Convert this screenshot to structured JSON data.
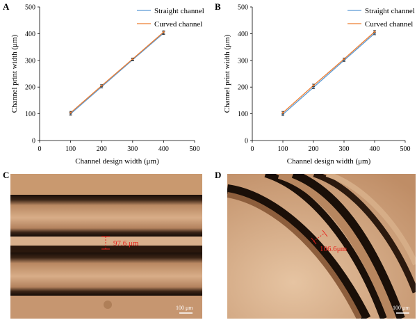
{
  "panels": [
    "A",
    "B",
    "C",
    "D"
  ],
  "chart_data": [
    {
      "type": "line",
      "panel": "A",
      "xlabel": "Channel design width (μm)",
      "ylabel": "Channel print width (μm)",
      "xlim": [
        0,
        500
      ],
      "ylim": [
        0,
        500
      ],
      "xticks": [
        "0",
        "100",
        "200",
        "300",
        "400",
        "500"
      ],
      "yticks": [
        "0",
        "100",
        "200",
        "300",
        "400",
        "500"
      ],
      "x": [
        100,
        200,
        300,
        400
      ],
      "legend_position": "top-right",
      "grid": false,
      "series": [
        {
          "name": "Straight channel",
          "color": "#5b9bd5",
          "values": [
            100,
            201,
            302,
            402
          ],
          "errors": [
            5,
            4,
            4,
            5
          ]
        },
        {
          "name": "Curved channel",
          "color": "#ed7d31",
          "values": [
            104,
            205,
            305,
            406
          ],
          "errors": [
            5,
            4,
            4,
            5
          ]
        }
      ]
    },
    {
      "type": "line",
      "panel": "B",
      "xlabel": "Channel design width (μm)",
      "ylabel": "Channel print width (μm)",
      "xlim": [
        0,
        500
      ],
      "ylim": [
        0,
        500
      ],
      "xticks": [
        "0",
        "100",
        "200",
        "300",
        "400",
        "500"
      ],
      "yticks": [
        "0",
        "100",
        "200",
        "300",
        "400",
        "500"
      ],
      "x": [
        100,
        200,
        300,
        400
      ],
      "legend_position": "top-right",
      "grid": false,
      "series": [
        {
          "name": "Straight channel",
          "color": "#5b9bd5",
          "values": [
            98,
            199,
            300,
            401
          ],
          "errors": [
            5,
            5,
            4,
            5
          ]
        },
        {
          "name": "Curved channel",
          "color": "#ed7d31",
          "values": [
            104,
            206,
            305,
            407
          ],
          "errors": [
            5,
            5,
            4,
            5
          ]
        }
      ]
    }
  ],
  "micrographs": {
    "C": {
      "measurement": "97.6 μm",
      "scale_bar": "100 μm"
    },
    "D": {
      "measurement": "106.6μm",
      "scale_bar": "100 μm"
    }
  },
  "colors": {
    "annotation": "#e8231c",
    "micrograph_bg": "#c4946c",
    "channel_edge": "#1a0f08"
  }
}
